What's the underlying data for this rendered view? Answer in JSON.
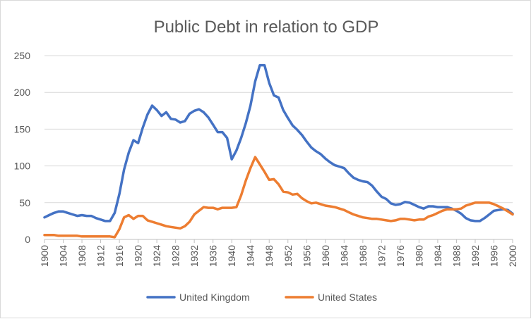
{
  "chart_data": {
    "type": "line",
    "title": "Public Debt in relation to GDP",
    "xlabel": "",
    "ylabel": "",
    "ylim": [
      0,
      250
    ],
    "yticks": [
      0,
      50,
      100,
      150,
      200,
      250
    ],
    "xlim": [
      1900,
      2000
    ],
    "xticks": [
      1900,
      1904,
      1908,
      1912,
      1916,
      1920,
      1924,
      1928,
      1932,
      1936,
      1940,
      1944,
      1948,
      1952,
      1956,
      1960,
      1964,
      1968,
      1972,
      1976,
      1980,
      1984,
      1988,
      1992,
      1996,
      2000
    ],
    "grid": true,
    "legend_position": "bottom",
    "series": [
      {
        "name": "United Kingdom",
        "color": "#4472c4",
        "x": [
          1900,
          1901,
          1902,
          1903,
          1904,
          1905,
          1906,
          1907,
          1908,
          1909,
          1910,
          1911,
          1912,
          1913,
          1914,
          1915,
          1916,
          1917,
          1918,
          1919,
          1920,
          1921,
          1922,
          1923,
          1924,
          1925,
          1926,
          1927,
          1928,
          1929,
          1930,
          1931,
          1932,
          1933,
          1934,
          1935,
          1936,
          1937,
          1938,
          1939,
          1940,
          1941,
          1942,
          1943,
          1944,
          1945,
          1946,
          1947,
          1948,
          1949,
          1950,
          1951,
          1952,
          1953,
          1954,
          1955,
          1956,
          1957,
          1958,
          1959,
          1960,
          1961,
          1962,
          1963,
          1964,
          1965,
          1966,
          1967,
          1968,
          1969,
          1970,
          1971,
          1972,
          1973,
          1974,
          1975,
          1976,
          1977,
          1978,
          1979,
          1980,
          1981,
          1982,
          1983,
          1984,
          1985,
          1986,
          1987,
          1988,
          1989,
          1990,
          1991,
          1992,
          1993,
          1994,
          1995,
          1996,
          1997,
          1998,
          1999,
          2000
        ],
        "values": [
          30,
          33,
          36,
          38,
          38,
          36,
          34,
          32,
          33,
          32,
          32,
          29,
          27,
          25,
          25,
          36,
          62,
          95,
          118,
          135,
          131,
          152,
          170,
          182,
          176,
          168,
          173,
          164,
          163,
          159,
          161,
          171,
          175,
          177,
          173,
          166,
          156,
          146,
          146,
          138,
          109,
          121,
          138,
          158,
          182,
          215,
          237,
          237,
          213,
          196,
          193,
          176,
          165,
          155,
          149,
          142,
          133,
          125,
          120,
          116,
          110,
          105,
          101,
          99,
          97,
          90,
          84,
          81,
          79,
          78,
          73,
          65,
          58,
          55,
          49,
          47,
          48,
          51,
          50,
          47,
          44,
          42,
          45,
          45,
          44,
          44,
          44,
          42,
          39,
          35,
          29,
          26,
          25,
          25,
          29,
          34,
          39,
          40,
          41,
          40,
          35
        ]
      },
      {
        "name": "United States",
        "color": "#ed7d31",
        "x": [
          1900,
          1901,
          1902,
          1903,
          1904,
          1905,
          1906,
          1907,
          1908,
          1909,
          1910,
          1911,
          1912,
          1913,
          1914,
          1915,
          1916,
          1917,
          1918,
          1919,
          1920,
          1921,
          1922,
          1923,
          1924,
          1925,
          1926,
          1927,
          1928,
          1929,
          1930,
          1931,
          1932,
          1933,
          1934,
          1935,
          1936,
          1937,
          1938,
          1939,
          1940,
          1941,
          1942,
          1943,
          1944,
          1945,
          1946,
          1947,
          1948,
          1949,
          1950,
          1951,
          1952,
          1953,
          1954,
          1955,
          1956,
          1957,
          1958,
          1959,
          1960,
          1961,
          1962,
          1963,
          1964,
          1965,
          1966,
          1967,
          1968,
          1969,
          1970,
          1971,
          1972,
          1973,
          1974,
          1975,
          1976,
          1977,
          1978,
          1979,
          1980,
          1981,
          1982,
          1983,
          1984,
          1985,
          1986,
          1987,
          1988,
          1989,
          1990,
          1991,
          1992,
          1993,
          1994,
          1995,
          1996,
          1997,
          1998,
          1999,
          2000
        ],
        "values": [
          6,
          6,
          6,
          5,
          5,
          5,
          5,
          5,
          4,
          4,
          4,
          4,
          4,
          4,
          4,
          3,
          14,
          30,
          33,
          28,
          32,
          32,
          26,
          24,
          22,
          20,
          18,
          17,
          16,
          15,
          18,
          24,
          34,
          39,
          44,
          43,
          43,
          41,
          43,
          43,
          43,
          44,
          60,
          80,
          97,
          112,
          102,
          92,
          81,
          82,
          75,
          65,
          64,
          61,
          62,
          56,
          52,
          49,
          50,
          48,
          46,
          45,
          44,
          42,
          40,
          37,
          34,
          32,
          30,
          29,
          28,
          28,
          27,
          26,
          25,
          26,
          28,
          28,
          27,
          26,
          27,
          27,
          31,
          33,
          36,
          39,
          41,
          41,
          41,
          42,
          46,
          48,
          50,
          50,
          50,
          50,
          48,
          45,
          42,
          38,
          34
        ]
      }
    ]
  }
}
